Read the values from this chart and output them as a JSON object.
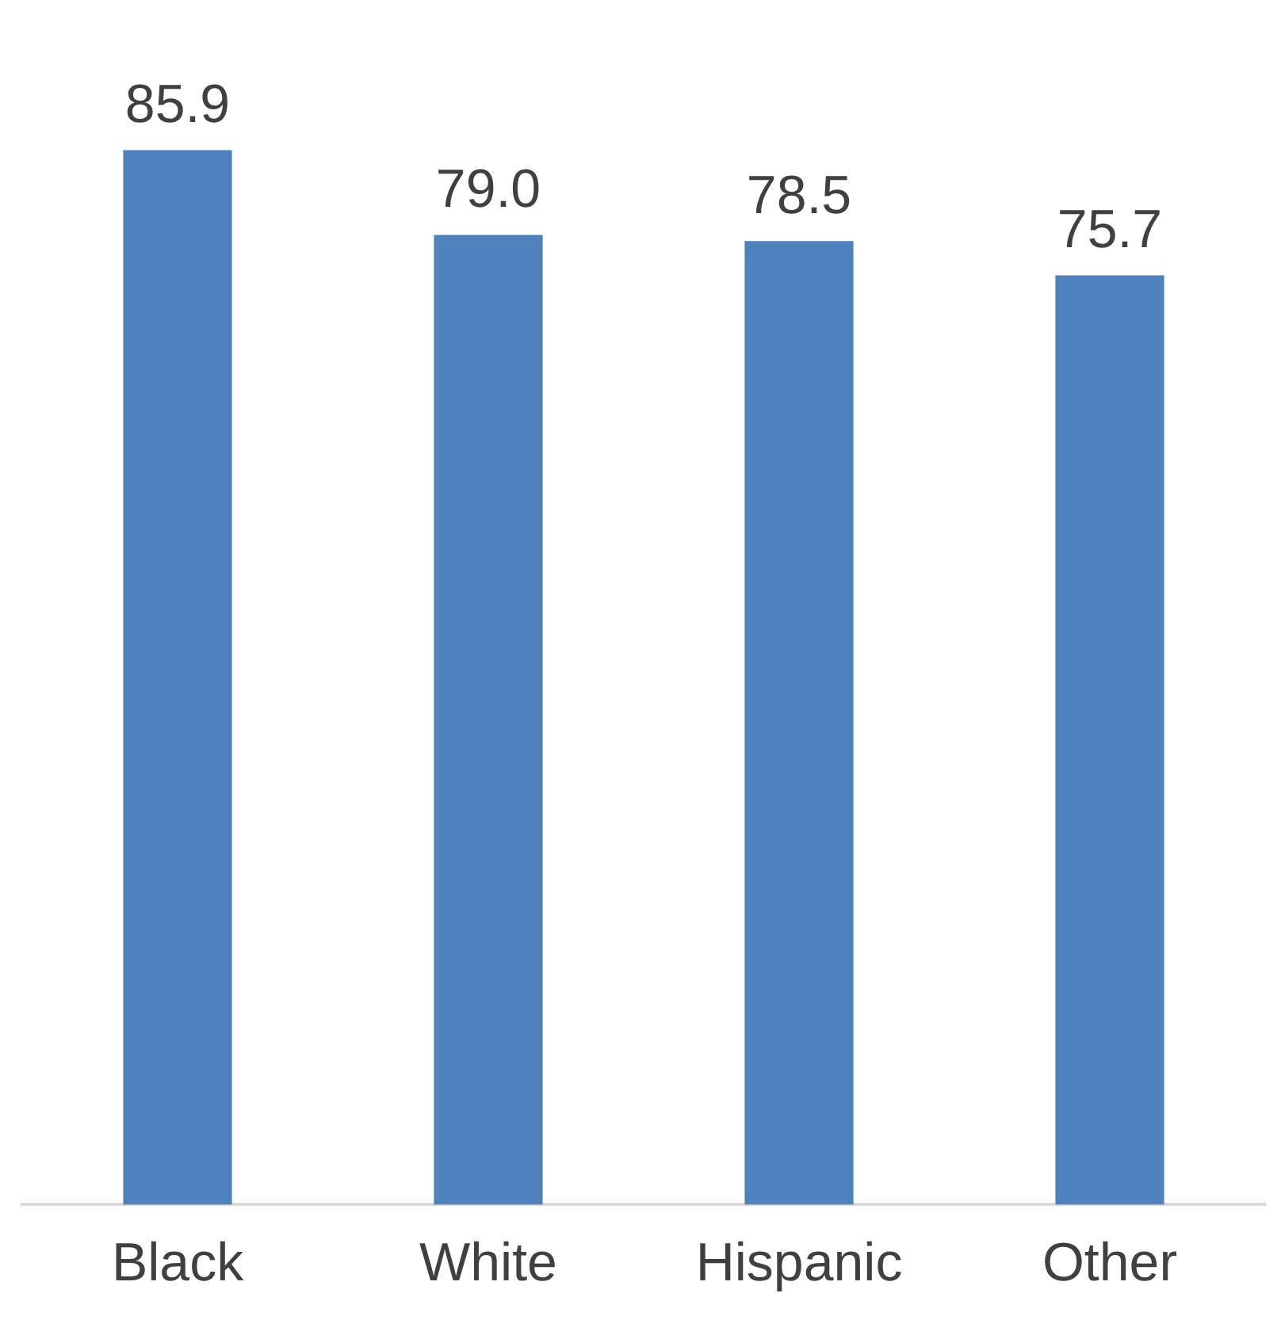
{
  "chart_data": {
    "type": "bar",
    "categories": [
      "Black",
      "White",
      "Hispanic",
      "Other"
    ],
    "values": [
      85.9,
      79.0,
      78.5,
      75.7
    ],
    "value_labels": [
      "85.9",
      "79.0",
      "78.5",
      "75.7"
    ],
    "color": "#4f81bd",
    "grid": false,
    "legend": false
  }
}
